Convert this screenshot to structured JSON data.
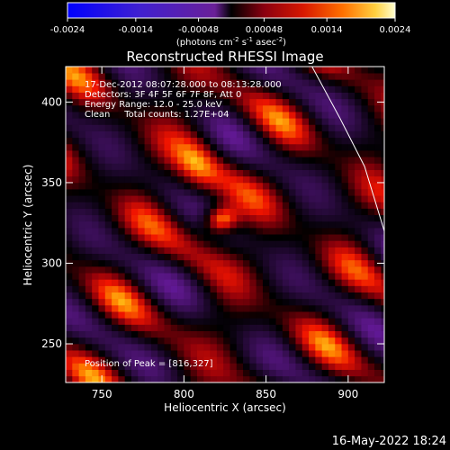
{
  "chart_data": {
    "type": "heatmap",
    "title": "Reconstructed RHESSI Image",
    "xlabel": "Heliocentric X (arcsec)",
    "ylabel": "Heliocentric Y (arcsec)",
    "xlim": [
      728,
      922
    ],
    "ylim": [
      226,
      422
    ],
    "xticks": [
      750,
      800,
      850,
      900
    ],
    "yticks": [
      250,
      300,
      350,
      400
    ],
    "colorbar": {
      "min": -0.0024,
      "max": 0.0024,
      "ticks": [
        "-0.0024",
        "-0.0014",
        "-0.00048",
        "0.00048",
        "0.0014",
        "0.0024"
      ],
      "unit_text": "(photons cm",
      "unit_sup1": "-2",
      "unit_mid1": " s",
      "unit_sup2": "-1",
      "unit_mid2": " asec",
      "unit_sup3": "-2",
      "unit_end": ")"
    },
    "annotations": [
      "17-Dec-2012 08:07:28.000 to 08:13:28.000",
      "Detectors: 3F 4F 5F 6F 7F 8F, Att 0",
      "Energy Range: 12.0 - 25.0 keV",
      "Clean     Total counts: 1.27E+04"
    ],
    "peak_label": "Position of Peak = [816,327]",
    "peak": {
      "x": 816,
      "y": 327,
      "value": 0.0024
    },
    "limb": [
      [
        878,
        422
      ],
      [
        895,
        390
      ],
      [
        910,
        360
      ],
      [
        922,
        320
      ]
    ]
  },
  "footer": {
    "timestamp": "16-May-2022 18:24"
  },
  "colors": {
    "background": "#000000",
    "text": "#ffffff"
  }
}
